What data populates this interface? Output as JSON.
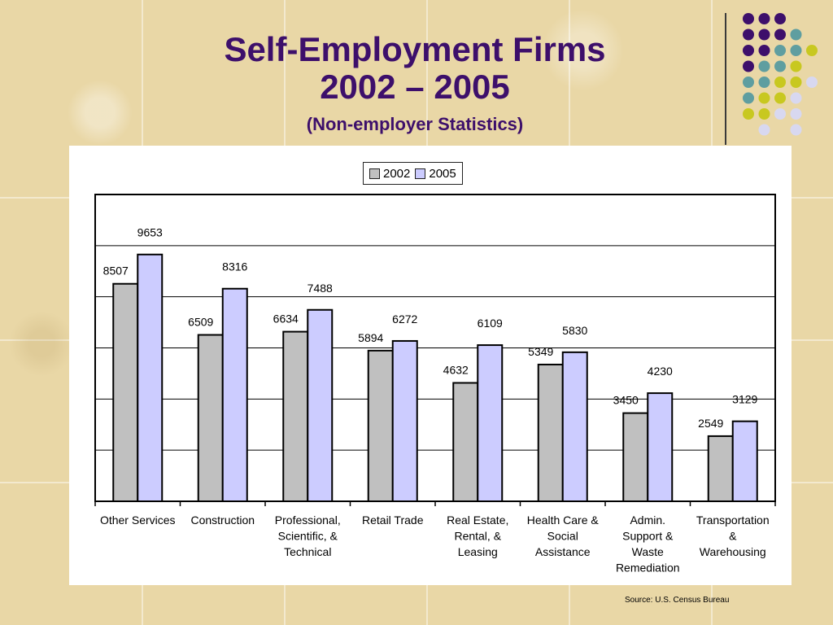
{
  "title_line1": "Self-Employment Firms",
  "title_line2": "2002 – 2005",
  "subtitle": "(Non-employer Statistics)",
  "source": "Source: U.S. Census Bureau",
  "colors": {
    "title": "#3d0f6b",
    "series_2002": "#c0c0c0",
    "series_2005": "#ccccff",
    "dot_purple": "#3d0f6b",
    "dot_teal": "#5f9ea0",
    "dot_yellow": "#c8c820",
    "dot_lilac": "#d8d8f0"
  },
  "decoration_dots": [
    [
      "purple",
      "purple",
      "purple",
      "",
      "",
      ""
    ],
    [
      "purple",
      "purple",
      "purple",
      "teal",
      "",
      ""
    ],
    [
      "purple",
      "purple",
      "teal",
      "teal",
      "yellow",
      ""
    ],
    [
      "purple",
      "teal",
      "teal",
      "yellow",
      "",
      ""
    ],
    [
      "teal",
      "teal",
      "yellow",
      "yellow",
      "lilac",
      ""
    ],
    [
      "teal",
      "yellow",
      "yellow",
      "lilac",
      "",
      ""
    ],
    [
      "yellow",
      "yellow",
      "lilac",
      "lilac",
      "",
      ""
    ],
    [
      "",
      "lilac",
      "",
      "lilac",
      "",
      ""
    ]
  ],
  "chart_data": {
    "type": "bar",
    "categories": [
      [
        "Other Services"
      ],
      [
        "Construction"
      ],
      [
        "Professional,",
        "Scientific, &",
        "Technical"
      ],
      [
        "Retail Trade"
      ],
      [
        "Real Estate,",
        "Rental, &",
        "Leasing"
      ],
      [
        "Health Care &",
        "Social",
        "Assistance"
      ],
      [
        "Admin.",
        "Support &",
        "Waste",
        "Remediation"
      ],
      [
        "Transportation",
        "&",
        "Warehousing"
      ]
    ],
    "series": [
      {
        "name": "2002",
        "values": [
          8507,
          6509,
          6634,
          5894,
          4632,
          5349,
          3450,
          2549
        ]
      },
      {
        "name": "2005",
        "values": [
          9653,
          8316,
          7488,
          6272,
          6109,
          5830,
          4230,
          3129
        ]
      }
    ],
    "ylim": [
      0,
      12000
    ],
    "ygrid_step": 2000,
    "grid": true,
    "legend_position": "top-center",
    "title": "",
    "xlabel": "",
    "ylabel": ""
  }
}
